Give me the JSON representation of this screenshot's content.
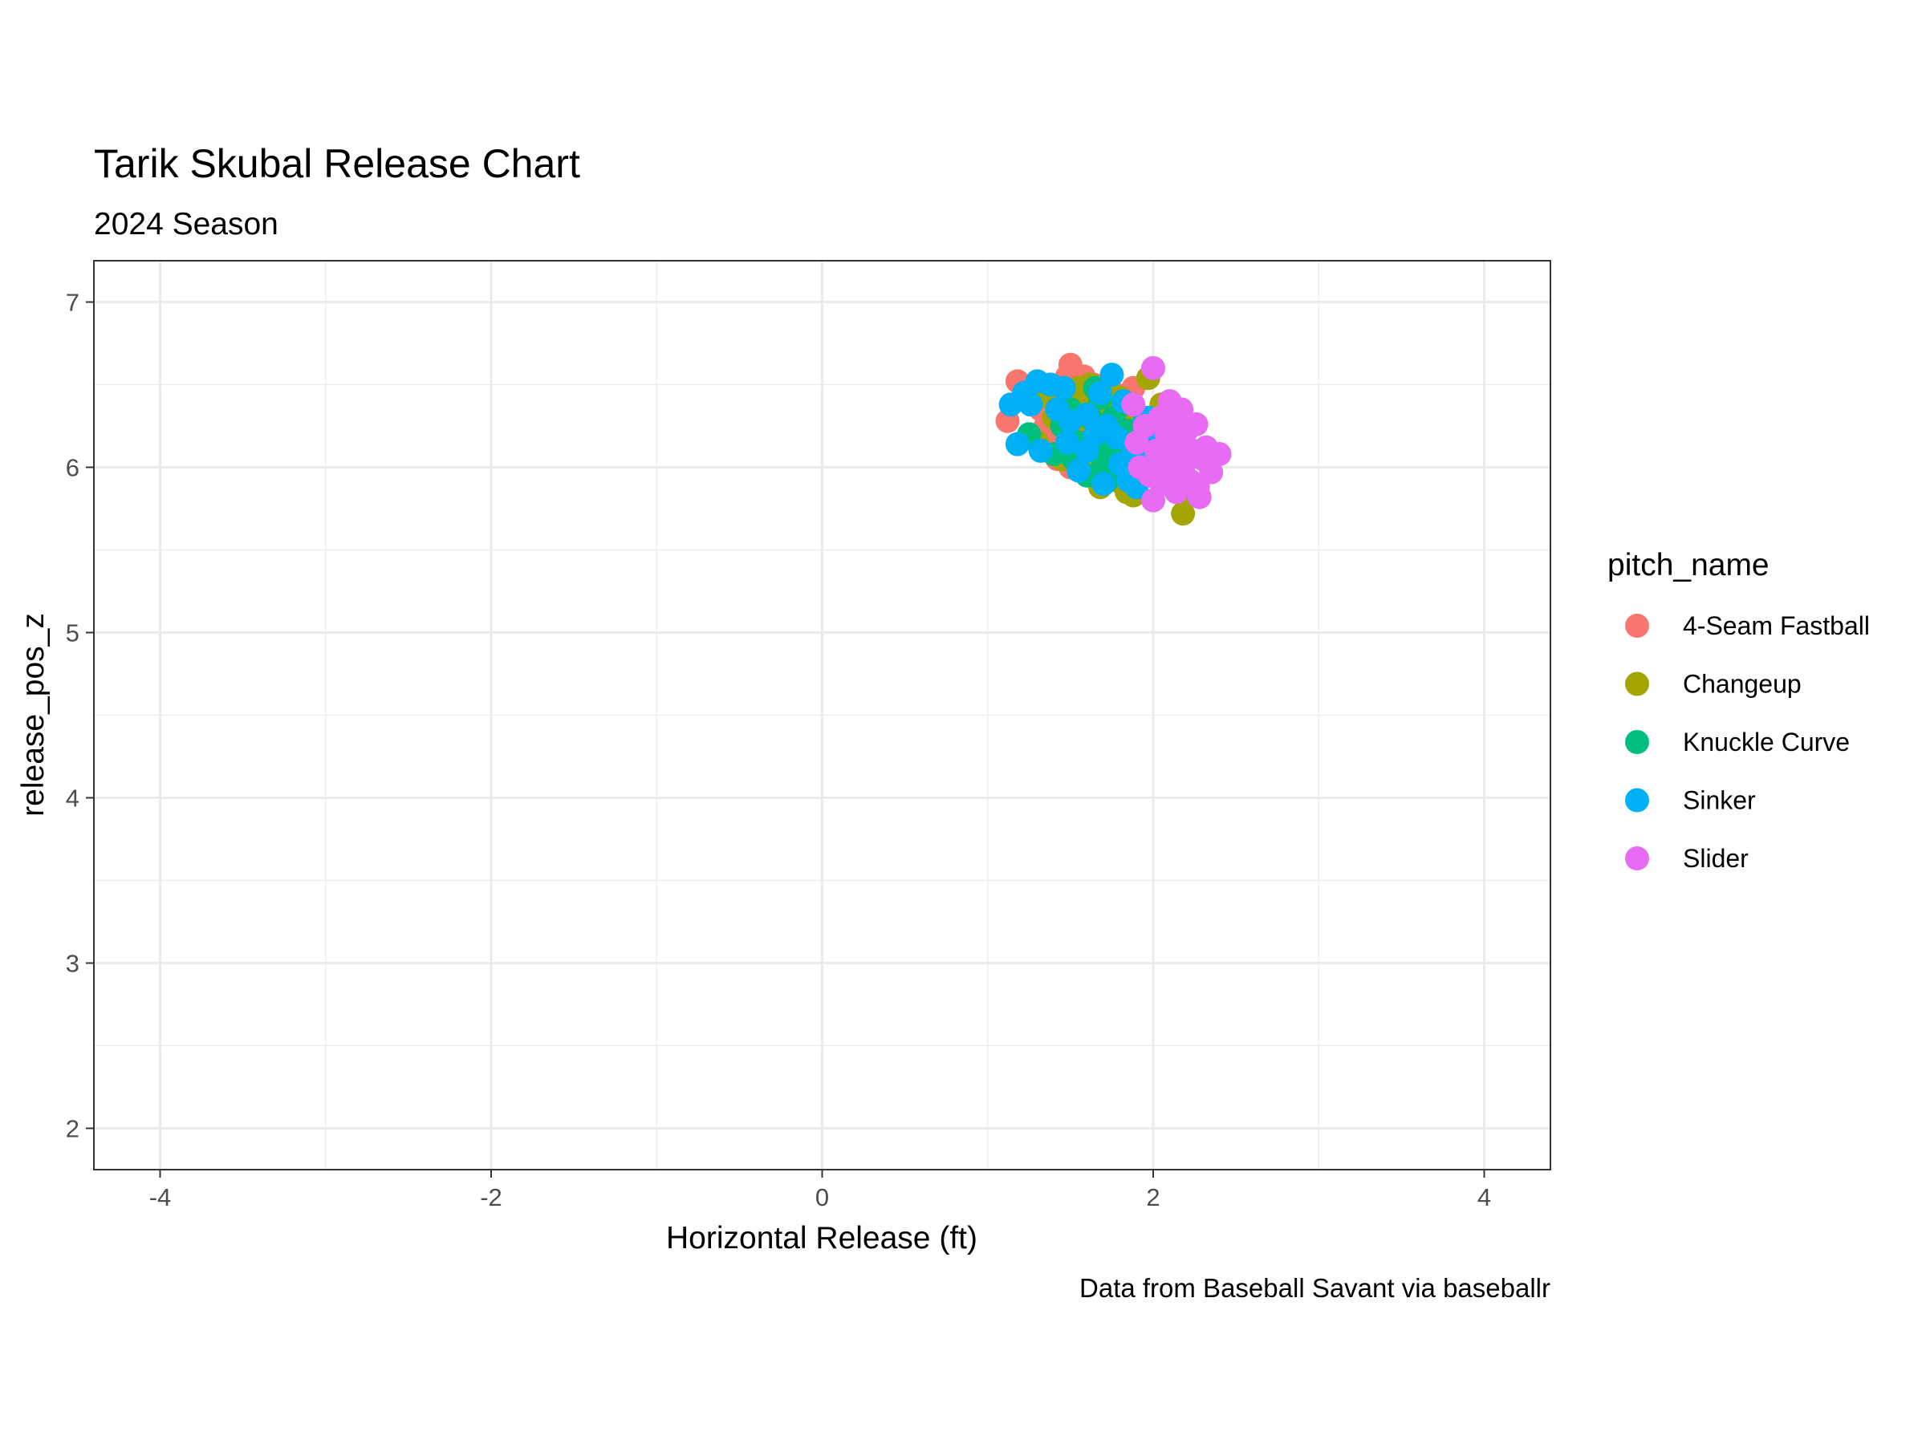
{
  "chart_data": {
    "type": "scatter",
    "title": "Tarik Skubal Release Chart",
    "subtitle": "2024 Season",
    "xlabel": "Horizontal Release (ft)",
    "ylabel": "release_pos_z",
    "caption": "Data from Baseball Savant via baseballr",
    "xlim": [
      -4.4,
      4.4
    ],
    "ylim": [
      1.75,
      7.25
    ],
    "x_ticks": [
      -4,
      -2,
      0,
      2,
      4
    ],
    "x_tick_labels": [
      "-4",
      "-2",
      "0",
      "2",
      "4"
    ],
    "y_ticks": [
      2,
      3,
      4,
      5,
      6,
      7
    ],
    "y_tick_labels": [
      "2",
      "3",
      "4",
      "5",
      "6",
      "7"
    ],
    "grid": true,
    "legend_title": "pitch_name",
    "legend_position": "right",
    "series": [
      {
        "name": "4-Seam Fastball",
        "color": "#F8766D",
        "points": [
          [
            1.12,
            6.28
          ],
          [
            1.18,
            6.52
          ],
          [
            1.25,
            6.45
          ],
          [
            1.3,
            6.2
          ],
          [
            1.32,
            6.35
          ],
          [
            1.36,
            6.1
          ],
          [
            1.38,
            6.5
          ],
          [
            1.4,
            6.27
          ],
          [
            1.42,
            6.05
          ],
          [
            1.44,
            6.4
          ],
          [
            1.46,
            6.18
          ],
          [
            1.48,
            6.55
          ],
          [
            1.5,
            6.62
          ],
          [
            1.5,
            6.0
          ],
          [
            1.52,
            6.3
          ],
          [
            1.54,
            6.12
          ],
          [
            1.56,
            6.45
          ],
          [
            1.58,
            6.22
          ],
          [
            1.6,
            6.36
          ],
          [
            1.62,
            6.08
          ],
          [
            1.64,
            6.5
          ],
          [
            1.66,
            6.25
          ],
          [
            1.68,
            6.15
          ],
          [
            1.7,
            6.4
          ],
          [
            1.72,
            6.3
          ],
          [
            1.74,
            6.05
          ],
          [
            1.76,
            6.45
          ],
          [
            1.78,
            6.2
          ],
          [
            1.8,
            6.35
          ],
          [
            1.82,
            5.98
          ],
          [
            1.85,
            6.28
          ],
          [
            1.88,
            6.48
          ],
          [
            1.35,
            6.25
          ],
          [
            1.45,
            6.3
          ],
          [
            1.55,
            6.15
          ],
          [
            1.65,
            6.42
          ],
          [
            1.28,
            6.4
          ],
          [
            1.58,
            6.55
          ],
          [
            1.42,
            6.2
          ],
          [
            1.62,
            6.28
          ]
        ]
      },
      {
        "name": "Changeup",
        "color": "#A3A500",
        "points": [
          [
            1.3,
            6.15
          ],
          [
            1.36,
            6.43
          ],
          [
            1.4,
            6.3
          ],
          [
            1.45,
            6.05
          ],
          [
            1.5,
            6.4
          ],
          [
            1.55,
            6.48
          ],
          [
            1.58,
            5.98
          ],
          [
            1.6,
            6.25
          ],
          [
            1.62,
            6.5
          ],
          [
            1.65,
            6.1
          ],
          [
            1.68,
            5.88
          ],
          [
            1.7,
            6.35
          ],
          [
            1.72,
            6.02
          ],
          [
            1.75,
            6.2
          ],
          [
            1.78,
            5.92
          ],
          [
            1.8,
            6.42
          ],
          [
            1.82,
            6.08
          ],
          [
            1.84,
            5.85
          ],
          [
            1.86,
            6.18
          ],
          [
            1.88,
            5.83
          ],
          [
            1.9,
            6.3
          ],
          [
            1.92,
            5.95
          ],
          [
            1.95,
            6.1
          ],
          [
            1.97,
            6.54
          ],
          [
            2.0,
            6.2
          ],
          [
            2.05,
            6.38
          ],
          [
            2.1,
            5.9
          ],
          [
            2.15,
            5.85
          ],
          [
            2.18,
            5.72
          ],
          [
            2.2,
            5.82
          ],
          [
            1.6,
            6.38
          ],
          [
            1.74,
            6.45
          ],
          [
            1.66,
            6.05
          ],
          [
            1.52,
            6.22
          ],
          [
            1.92,
            6.12
          ],
          [
            1.85,
            5.95
          ]
        ]
      },
      {
        "name": "Knuckle Curve",
        "color": "#00BF7D",
        "points": [
          [
            1.25,
            6.2
          ],
          [
            1.4,
            6.08
          ],
          [
            1.45,
            6.25
          ],
          [
            1.52,
            6.05
          ],
          [
            1.55,
            6.15
          ],
          [
            1.6,
            5.95
          ],
          [
            1.65,
            6.48
          ],
          [
            1.68,
            6.2
          ],
          [
            1.7,
            6.02
          ],
          [
            1.73,
            6.1
          ],
          [
            1.76,
            6.3
          ],
          [
            1.78,
            5.98
          ],
          [
            1.8,
            6.12
          ],
          [
            1.85,
            6.22
          ],
          [
            1.9,
            6.05
          ],
          [
            1.95,
            5.95
          ],
          [
            1.62,
            6.3
          ],
          [
            1.58,
            6.12
          ],
          [
            1.72,
            5.92
          ],
          [
            1.82,
            6.38
          ],
          [
            1.5,
            6.35
          ],
          [
            1.68,
            6.42
          ]
        ]
      },
      {
        "name": "Sinker",
        "color": "#00B0F6",
        "points": [
          [
            1.14,
            6.38
          ],
          [
            1.18,
            6.14
          ],
          [
            1.22,
            6.45
          ],
          [
            1.26,
            6.38
          ],
          [
            1.3,
            6.52
          ],
          [
            1.32,
            6.1
          ],
          [
            1.38,
            6.5
          ],
          [
            1.42,
            6.35
          ],
          [
            1.46,
            6.48
          ],
          [
            1.5,
            6.28
          ],
          [
            1.55,
            5.98
          ],
          [
            1.6,
            6.1
          ],
          [
            1.65,
            6.2
          ],
          [
            1.68,
            6.45
          ],
          [
            1.7,
            5.9
          ],
          [
            1.75,
            6.56
          ],
          [
            1.78,
            6.18
          ],
          [
            1.8,
            6.02
          ],
          [
            1.82,
            6.4
          ],
          [
            1.85,
            5.92
          ],
          [
            1.88,
            6.1
          ],
          [
            1.9,
            5.88
          ],
          [
            1.92,
            6.05
          ],
          [
            1.95,
            6.28
          ],
          [
            1.97,
            6.3
          ],
          [
            1.98,
            6.18
          ],
          [
            2.0,
            5.95
          ],
          [
            1.6,
            6.32
          ],
          [
            1.72,
            6.25
          ],
          [
            1.48,
            6.15
          ]
        ]
      },
      {
        "name": "Slider",
        "color": "#E76BF3",
        "points": [
          [
            1.88,
            6.38
          ],
          [
            1.9,
            6.15
          ],
          [
            1.92,
            6.0
          ],
          [
            1.95,
            6.25
          ],
          [
            1.98,
            5.95
          ],
          [
            2.0,
            6.6
          ],
          [
            2.0,
            5.8
          ],
          [
            2.02,
            6.1
          ],
          [
            2.04,
            6.3
          ],
          [
            2.05,
            5.9
          ],
          [
            2.08,
            6.2
          ],
          [
            2.1,
            6.4
          ],
          [
            2.1,
            6.05
          ],
          [
            2.12,
            6.28
          ],
          [
            2.14,
            5.85
          ],
          [
            2.15,
            6.15
          ],
          [
            2.17,
            6.35
          ],
          [
            2.18,
            6.0
          ],
          [
            2.2,
            6.22
          ],
          [
            2.22,
            5.92
          ],
          [
            2.24,
            6.1
          ],
          [
            2.26,
            6.26
          ],
          [
            2.27,
            5.88
          ],
          [
            2.28,
            5.82
          ],
          [
            2.3,
            6.05
          ],
          [
            2.32,
            6.12
          ],
          [
            2.35,
            5.97
          ],
          [
            2.4,
            6.08
          ],
          [
            2.06,
            6.02
          ],
          [
            2.12,
            6.18
          ],
          [
            2.2,
            6.1
          ],
          [
            2.08,
            5.95
          ],
          [
            2.16,
            6.05
          ]
        ]
      }
    ]
  }
}
